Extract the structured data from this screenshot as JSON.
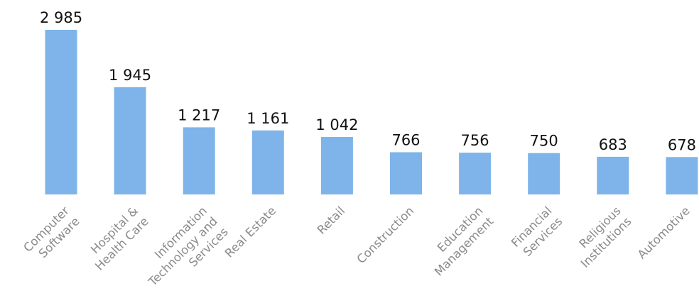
{
  "chart_data": {
    "type": "bar",
    "title": "",
    "xlabel": "",
    "ylabel": "",
    "grid": false,
    "ylim": [
      0,
      3000
    ],
    "colors": {
      "bar": "#7eb4e9",
      "value_label": "#111111",
      "category_label": "#8a8a8a"
    },
    "categories": [
      {
        "lines": [
          "Computer",
          "Software"
        ]
      },
      {
        "lines": [
          "Hospital &",
          "Health Care"
        ]
      },
      {
        "lines": [
          "Information",
          "Technology and",
          "Services"
        ]
      },
      {
        "lines": [
          "Real Estate"
        ]
      },
      {
        "lines": [
          "Retail"
        ]
      },
      {
        "lines": [
          "Construction"
        ]
      },
      {
        "lines": [
          "Education",
          "Management"
        ]
      },
      {
        "lines": [
          "Financial",
          "Services"
        ]
      },
      {
        "lines": [
          "Religious",
          "Institutions"
        ]
      },
      {
        "lines": [
          "Automotive"
        ]
      }
    ],
    "values": [
      2985,
      1945,
      1217,
      1161,
      1042,
      766,
      756,
      750,
      683,
      678
    ],
    "value_labels": [
      "2 985",
      "1 945",
      "1 217",
      "1 161",
      "1 042",
      "766",
      "756",
      "750",
      "683",
      "678"
    ]
  }
}
